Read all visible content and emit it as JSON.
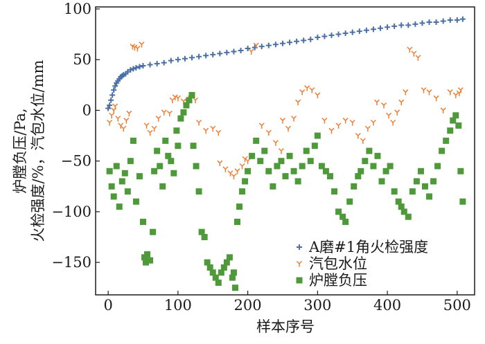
{
  "chart_data": {
    "type": "scatter",
    "title": "",
    "xlabel": "样本序号",
    "ylabel_lines": [
      "炉膛负压/Pa,",
      "火检强度/%，汽包水位/mm"
    ],
    "xlim": [
      -18,
      525
    ],
    "ylim": [
      -182,
      102
    ],
    "xticks": [
      0,
      100,
      200,
      300,
      400,
      500
    ],
    "yticks": [
      -150,
      -100,
      -50,
      0,
      50,
      100
    ],
    "grid": false,
    "legend_position": "bottom-right",
    "series": [
      {
        "name": "A磨#1角火检强度",
        "marker": "plus",
        "color": "#4a6fa5",
        "points": [
          [
            0,
            2
          ],
          [
            2,
            5
          ],
          [
            4,
            10
          ],
          [
            6,
            15
          ],
          [
            8,
            20
          ],
          [
            10,
            24
          ],
          [
            12,
            27
          ],
          [
            14,
            29
          ],
          [
            16,
            31
          ],
          [
            18,
            33
          ],
          [
            20,
            34
          ],
          [
            22,
            35
          ],
          [
            25,
            36
          ],
          [
            28,
            38
          ],
          [
            32,
            40
          ],
          [
            36,
            41
          ],
          [
            40,
            42
          ],
          [
            45,
            43
          ],
          [
            50,
            44
          ],
          [
            60,
            45
          ],
          [
            70,
            46
          ],
          [
            80,
            47
          ],
          [
            90,
            49
          ],
          [
            100,
            50
          ],
          [
            110,
            51
          ],
          [
            120,
            52
          ],
          [
            130,
            53
          ],
          [
            140,
            54
          ],
          [
            150,
            55
          ],
          [
            160,
            56
          ],
          [
            170,
            57
          ],
          [
            180,
            58
          ],
          [
            190,
            59
          ],
          [
            200,
            61
          ],
          [
            210,
            62
          ],
          [
            220,
            63
          ],
          [
            230,
            64
          ],
          [
            240,
            65
          ],
          [
            250,
            66
          ],
          [
            260,
            67
          ],
          [
            270,
            68
          ],
          [
            280,
            69
          ],
          [
            290,
            70
          ],
          [
            300,
            72
          ],
          [
            310,
            73
          ],
          [
            320,
            74
          ],
          [
            330,
            75
          ],
          [
            340,
            76
          ],
          [
            350,
            77
          ],
          [
            360,
            78
          ],
          [
            370,
            79
          ],
          [
            380,
            80
          ],
          [
            390,
            81
          ],
          [
            400,
            82
          ],
          [
            410,
            83
          ],
          [
            420,
            84
          ],
          [
            430,
            84
          ],
          [
            440,
            85
          ],
          [
            450,
            86
          ],
          [
            460,
            87
          ],
          [
            470,
            87
          ],
          [
            480,
            88
          ],
          [
            490,
            89
          ],
          [
            500,
            89
          ],
          [
            508,
            90
          ]
        ]
      },
      {
        "name": "汽包水位",
        "marker": "tri_down",
        "color": "#ed7d31",
        "points": [
          [
            2,
            -12
          ],
          [
            5,
            -5
          ],
          [
            8,
            0
          ],
          [
            10,
            4
          ],
          [
            14,
            -8
          ],
          [
            18,
            -15
          ],
          [
            22,
            -18
          ],
          [
            26,
            -10
          ],
          [
            30,
            -3
          ],
          [
            35,
            63
          ],
          [
            38,
            62
          ],
          [
            42,
            61
          ],
          [
            48,
            65
          ],
          [
            55,
            -15
          ],
          [
            60,
            -22
          ],
          [
            66,
            -18
          ],
          [
            72,
            -8
          ],
          [
            80,
            -2
          ],
          [
            88,
            -3
          ],
          [
            92,
            10
          ],
          [
            96,
            13
          ],
          [
            100,
            12
          ],
          [
            108,
            9
          ],
          [
            114,
            8
          ],
          [
            118,
            12
          ],
          [
            125,
            10
          ],
          [
            130,
            -12
          ],
          [
            140,
            -20
          ],
          [
            150,
            -18
          ],
          [
            158,
            -22
          ],
          [
            160,
            -52
          ],
          [
            168,
            -58
          ],
          [
            175,
            -62
          ],
          [
            180,
            -65
          ],
          [
            185,
            -60
          ],
          [
            192,
            -55
          ],
          [
            196,
            -48
          ],
          [
            200,
            -50
          ],
          [
            205,
            58
          ],
          [
            212,
            64
          ],
          [
            220,
            -15
          ],
          [
            230,
            -22
          ],
          [
            240,
            -32
          ],
          [
            248,
            -40
          ],
          [
            250,
            -10
          ],
          [
            258,
            -18
          ],
          [
            266,
            -8
          ],
          [
            272,
            8
          ],
          [
            278,
            18
          ],
          [
            285,
            22
          ],
          [
            292,
            20
          ],
          [
            300,
            15
          ],
          [
            310,
            -10
          ],
          [
            320,
            -20
          ],
          [
            330,
            -15
          ],
          [
            340,
            -10
          ],
          [
            350,
            -12
          ],
          [
            358,
            -25
          ],
          [
            365,
            -30
          ],
          [
            372,
            -18
          ],
          [
            380,
            -12
          ],
          [
            385,
            8
          ],
          [
            395,
            5
          ],
          [
            402,
            -5
          ],
          [
            408,
            -12
          ],
          [
            414,
            -2
          ],
          [
            420,
            8
          ],
          [
            426,
            18
          ],
          [
            432,
            60
          ],
          [
            438,
            56
          ],
          [
            444,
            52
          ],
          [
            452,
            20
          ],
          [
            460,
            18
          ],
          [
            470,
            12
          ],
          [
            480,
            0
          ],
          [
            490,
            18
          ],
          [
            498,
            15
          ],
          [
            503,
            17
          ],
          [
            505,
            20
          ]
        ]
      },
      {
        "name": "炉膛负压",
        "marker": "square",
        "color": "#4e9a3a",
        "points": [
          [
            2,
            -60
          ],
          [
            5,
            -75
          ],
          [
            8,
            -85
          ],
          [
            12,
            -55
          ],
          [
            16,
            -95
          ],
          [
            20,
            -70
          ],
          [
            24,
            -62
          ],
          [
            28,
            -80
          ],
          [
            32,
            -50
          ],
          [
            36,
            -30
          ],
          [
            40,
            -90
          ],
          [
            45,
            -65
          ],
          [
            50,
            -110
          ],
          [
            52,
            -145
          ],
          [
            54,
            -150
          ],
          [
            56,
            -142
          ],
          [
            60,
            -148
          ],
          [
            64,
            -120
          ],
          [
            66,
            -60
          ],
          [
            70,
            -40
          ],
          [
            74,
            -55
          ],
          [
            78,
            -75
          ],
          [
            82,
            -30
          ],
          [
            86,
            -45
          ],
          [
            90,
            -50
          ],
          [
            94,
            -62
          ],
          [
            98,
            -20
          ],
          [
            100,
            -35
          ],
          [
            104,
            -8
          ],
          [
            108,
            -2
          ],
          [
            112,
            5
          ],
          [
            116,
            10
          ],
          [
            120,
            15
          ],
          [
            122,
            -35
          ],
          [
            126,
            -55
          ],
          [
            130,
            -80
          ],
          [
            134,
            -120
          ],
          [
            138,
            -125
          ],
          [
            142,
            -150
          ],
          [
            146,
            -155
          ],
          [
            150,
            -160
          ],
          [
            154,
            -165
          ],
          [
            158,
            -170
          ],
          [
            162,
            -160
          ],
          [
            166,
            -155
          ],
          [
            170,
            -150
          ],
          [
            174,
            -145
          ],
          [
            178,
            -165
          ],
          [
            180,
            -160
          ],
          [
            182,
            -175
          ],
          [
            185,
            -110
          ],
          [
            188,
            -95
          ],
          [
            192,
            -80
          ],
          [
            196,
            -70
          ],
          [
            200,
            -60
          ],
          [
            206,
            -45
          ],
          [
            212,
            -30
          ],
          [
            218,
            -50
          ],
          [
            224,
            -40
          ],
          [
            230,
            -60
          ],
          [
            236,
            -75
          ],
          [
            242,
            -55
          ],
          [
            248,
            -50
          ],
          [
            254,
            -65
          ],
          [
            260,
            -45
          ],
          [
            266,
            -60
          ],
          [
            272,
            -70
          ],
          [
            278,
            -55
          ],
          [
            284,
            -40
          ],
          [
            290,
            -50
          ],
          [
            296,
            -35
          ],
          [
            300,
            -25
          ],
          [
            306,
            -55
          ],
          [
            312,
            -60
          ],
          [
            318,
            -65
          ],
          [
            324,
            -80
          ],
          [
            330,
            -100
          ],
          [
            336,
            -105
          ],
          [
            340,
            -110
          ],
          [
            346,
            -90
          ],
          [
            352,
            -75
          ],
          [
            358,
            -65
          ],
          [
            362,
            -60
          ],
          [
            368,
            -50
          ],
          [
            374,
            -40
          ],
          [
            380,
            -55
          ],
          [
            386,
            -45
          ],
          [
            392,
            -70
          ],
          [
            398,
            -60
          ],
          [
            404,
            -55
          ],
          [
            410,
            -80
          ],
          [
            416,
            -90
          ],
          [
            420,
            -95
          ],
          [
            424,
            -100
          ],
          [
            430,
            -105
          ],
          [
            436,
            -80
          ],
          [
            442,
            -70
          ],
          [
            448,
            -60
          ],
          [
            454,
            -75
          ],
          [
            460,
            -85
          ],
          [
            466,
            -70
          ],
          [
            472,
            -55
          ],
          [
            478,
            -40
          ],
          [
            484,
            -30
          ],
          [
            490,
            -20
          ],
          [
            494,
            -10
          ],
          [
            498,
            -5
          ],
          [
            502,
            -15
          ],
          [
            505,
            -60
          ],
          [
            508,
            -90
          ]
        ]
      }
    ]
  }
}
